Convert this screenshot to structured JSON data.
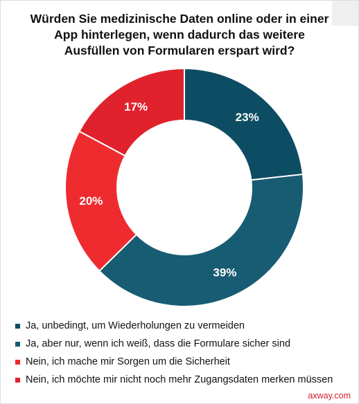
{
  "title_lines": [
    "Würden Sie medizinische Daten online oder in einer",
    "App hinterlegen, wenn dadurch das weitere",
    "Ausfüllen von Formularen erspart wird?"
  ],
  "source": "axway.com",
  "chart_data": {
    "type": "pie",
    "donut": true,
    "title": "Würden Sie medizinische Daten online oder in einer App hinterlegen, wenn dadurch das weitere Ausfüllen von Formularen erspart wird?",
    "legend_position": "bottom",
    "slices": [
      {
        "label": "Ja, unbedingt, um Wiederholungen zu vermeiden",
        "value": 23,
        "display": "23%",
        "color": "#0d4d63"
      },
      {
        "label": "Ja, aber nur, wenn ich weiß, dass die Formulare sicher sind",
        "value": 39,
        "display": "39%",
        "color": "#175c72"
      },
      {
        "label": "Nein, ich mache mir Sorgen um die Sicherheit",
        "value": 20,
        "display": "20%",
        "color": "#ee2b2f"
      },
      {
        "label": "Nein, ich möchte mir nicht noch mehr Zugangsdaten merken müssen",
        "value": 17,
        "display": "17%",
        "color": "#e0222d"
      }
    ]
  }
}
